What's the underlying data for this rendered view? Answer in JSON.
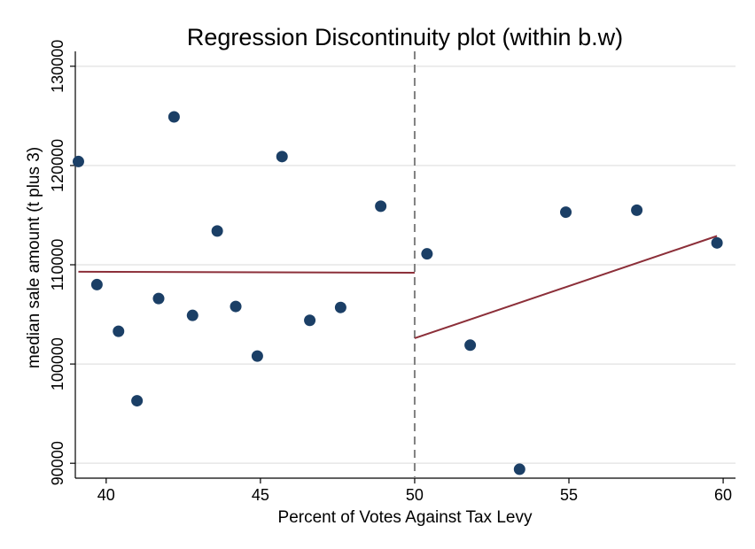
{
  "chart_data": {
    "type": "scatter",
    "title": "Regression Discontinuity plot (within b.w)",
    "xlabel": "Percent of Votes Against Tax Levy",
    "ylabel": "median sale amount (t plus 3)",
    "xlim": [
      39,
      60.4
    ],
    "ylim": [
      88500,
      131500
    ],
    "x_ticks": [
      "40",
      "45",
      "50",
      "55",
      "60"
    ],
    "y_ticks": [
      "90000",
      "100000",
      "110000",
      "120000",
      "130000"
    ],
    "grid": "horizontal",
    "cutoff": 50,
    "colors": {
      "points": "#1b3f66",
      "fit": "#8c2f39",
      "cutoff": "#808080",
      "grid": "#e6e6e6"
    },
    "points": [
      {
        "x": 39.1,
        "y": 120400
      },
      {
        "x": 39.7,
        "y": 108000
      },
      {
        "x": 40.4,
        "y": 103300
      },
      {
        "x": 41.0,
        "y": 96300
      },
      {
        "x": 41.7,
        "y": 106600
      },
      {
        "x": 42.2,
        "y": 124900
      },
      {
        "x": 42.8,
        "y": 104900
      },
      {
        "x": 43.6,
        "y": 113400
      },
      {
        "x": 44.2,
        "y": 105800
      },
      {
        "x": 44.9,
        "y": 100800
      },
      {
        "x": 45.7,
        "y": 120900
      },
      {
        "x": 46.6,
        "y": 104400
      },
      {
        "x": 47.6,
        "y": 105700
      },
      {
        "x": 48.9,
        "y": 115900
      },
      {
        "x": 50.4,
        "y": 111100
      },
      {
        "x": 51.8,
        "y": 101900
      },
      {
        "x": 53.4,
        "y": 89400
      },
      {
        "x": 54.9,
        "y": 115300
      },
      {
        "x": 57.2,
        "y": 115500
      },
      {
        "x": 59.8,
        "y": 112200
      }
    ],
    "fit_lines": [
      {
        "x": [
          39.1,
          50.0
        ],
        "y": [
          109300,
          109200
        ]
      },
      {
        "x": [
          50.0,
          59.8
        ],
        "y": [
          102600,
          112900
        ]
      }
    ]
  }
}
